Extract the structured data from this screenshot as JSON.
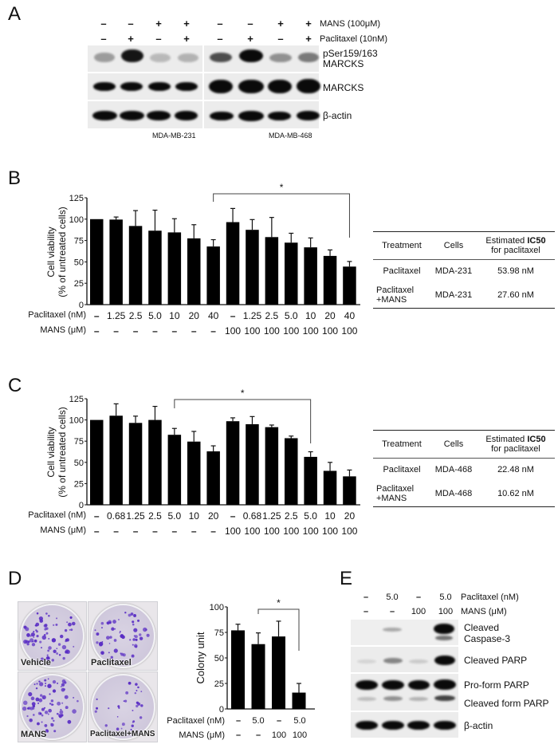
{
  "panels": {
    "A": {
      "letter": "A",
      "row_labels": {
        "mans": "MANS (100μM)",
        "paclitaxel": "Paclitaxel (10nM)"
      },
      "mans_signs": [
        "-",
        "-",
        "+",
        "+",
        "-",
        "-",
        "+",
        "+"
      ],
      "paclitaxel_signs": [
        "-",
        "+",
        "-",
        "+",
        "-",
        "+",
        "-",
        "+"
      ],
      "blot_labels": [
        "pSer159/163\nMARCKS",
        "MARCKS",
        "β-actin"
      ],
      "blot_label_1a": "pSer159/163",
      "blot_label_1b": "MARCKS",
      "blot_label_2": "MARCKS",
      "blot_label_3": "β-actin",
      "cell_lines": [
        "MDA-MB-231",
        "MDA-MB-468"
      ]
    },
    "B": {
      "letter": "B",
      "row_labels": {
        "paclitaxel": "Paclitaxel (nM)",
        "mans": "MANS (μM)"
      },
      "table": {
        "headers": [
          "Treatment",
          "Cells",
          "Estimated IC50 for paclitaxel"
        ],
        "header_ic50_pre": "Estimated ",
        "header_ic50_bold": "IC50",
        "header_ic50_post": "for paclitaxel",
        "rows": [
          {
            "treatment": "Paclitaxel",
            "treatment2": "",
            "cells": "MDA-231",
            "ic50": "53.98 nM"
          },
          {
            "treatment": "Paclitaxel",
            "treatment2": "+MANS",
            "cells": "MDA-231",
            "ic50": "27.60 nM"
          }
        ]
      }
    },
    "C": {
      "letter": "C",
      "row_labels": {
        "paclitaxel": "Paclitaxel (nM)",
        "mans": "MANS (μM)"
      },
      "table": {
        "headers": [
          "Treatment",
          "Cells",
          "Estimated IC50 for paclitaxel"
        ],
        "header_ic50_pre": "Estimated ",
        "header_ic50_bold": "IC50",
        "header_ic50_post": "for paclitaxel",
        "rows": [
          {
            "treatment": "Paclitaxel",
            "treatment2": "",
            "cells": "MDA-468",
            "ic50": "22.48 nM"
          },
          {
            "treatment": "Paclitaxel",
            "treatment2": "+MANS",
            "cells": "MDA-468",
            "ic50": "10.62 nM"
          }
        ]
      }
    },
    "D": {
      "letter": "D",
      "plates": [
        "Vehicle",
        "Paclitaxel",
        "MANS",
        "Paclitaxel+MANS"
      ],
      "row_labels": {
        "paclitaxel": "Paclitaxel (nM)",
        "mans": "MANS (μM)"
      }
    },
    "E": {
      "letter": "E",
      "row_labels": {
        "paclitaxel": "Paclitaxel (nM)",
        "mans": "MANS (μM)"
      },
      "paclitaxel_values": [
        "-",
        "5.0",
        "-",
        "5.0"
      ],
      "mans_values": [
        "-",
        "-",
        "100",
        "100"
      ],
      "blot_label_1a": "Cleaved",
      "blot_label_1b": "Caspase-3",
      "blot_label_2": "Cleaved PARP",
      "blot_label_3": "Pro-form PARP",
      "blot_label_4": "Cleaved form PARP",
      "blot_label_5": "β-actin"
    }
  },
  "chart_data": [
    {
      "panel": "B",
      "type": "bar",
      "title": "",
      "xlabel": "",
      "ylabel": "Cell viability\n(% of untreated cells)",
      "ylabel_line1": "Cell viability",
      "ylabel_line2": "(% of untreated cells)",
      "ylim": [
        0,
        125
      ],
      "yticks": [
        0,
        25,
        50,
        75,
        100,
        125
      ],
      "categories_paclitaxel": [
        "-",
        "1.25",
        "2.5",
        "5.0",
        "10",
        "20",
        "40",
        "-",
        "1.25",
        "2.5",
        "5.0",
        "10",
        "20",
        "40"
      ],
      "categories_mans": [
        "-",
        "-",
        "-",
        "-",
        "-",
        "-",
        "-",
        "100",
        "100",
        "100",
        "100",
        "100",
        "100",
        "100"
      ],
      "values": [
        100,
        99.5,
        92,
        86.5,
        84.5,
        77.5,
        68,
        96.5,
        87.5,
        79,
        72.5,
        67,
        57,
        44.5
      ],
      "errors": [
        0,
        3,
        18,
        24,
        16,
        16,
        8,
        16,
        12,
        23,
        11,
        11,
        7,
        6
      ],
      "significance": {
        "from_index": 6,
        "to_index": 13,
        "label": "*"
      },
      "grid": false,
      "legend": null
    },
    {
      "panel": "C",
      "type": "bar",
      "title": "",
      "xlabel": "",
      "ylabel": "Cell viability\n(% of untreated cells)",
      "ylabel_line1": "Cell viability",
      "ylabel_line2": "(% of untreated cells)",
      "ylim": [
        0,
        125
      ],
      "yticks": [
        0,
        25,
        50,
        75,
        100,
        125
      ],
      "categories_paclitaxel": [
        "-",
        "0.68",
        "1.25",
        "2.5",
        "5.0",
        "10",
        "20",
        "-",
        "0.68",
        "1.25",
        "2.5",
        "5.0",
        "10",
        "20"
      ],
      "categories_mans": [
        "-",
        "-",
        "-",
        "-",
        "-",
        "-",
        "-",
        "100",
        "100",
        "100",
        "100",
        "100",
        "100",
        "100"
      ],
      "values": [
        100,
        105,
        96.5,
        100,
        82.5,
        74.5,
        63,
        98.5,
        95,
        91.5,
        78.5,
        56.5,
        40,
        33.5
      ],
      "errors": [
        0,
        14,
        8,
        16,
        7.5,
        12,
        6.5,
        4,
        9,
        2.5,
        2.5,
        6,
        10,
        7.5
      ],
      "significance": {
        "from_index": 4,
        "to_index": 11,
        "label": "*"
      },
      "grid": false,
      "legend": null
    },
    {
      "panel": "D",
      "type": "bar",
      "title": "",
      "xlabel": "",
      "ylabel": "Colony unit",
      "ylim": [
        0,
        100
      ],
      "yticks": [
        0,
        25,
        50,
        75,
        100
      ],
      "categories_paclitaxel": [
        "-",
        "5.0",
        "-",
        "5.0"
      ],
      "categories_mans": [
        "-",
        "-",
        "100",
        "100"
      ],
      "values": [
        77,
        63.5,
        71,
        16
      ],
      "errors": [
        6,
        11,
        15,
        9
      ],
      "significance": {
        "from_index": 1,
        "to_index": 3,
        "label": "*"
      },
      "grid": false,
      "legend": null
    }
  ]
}
